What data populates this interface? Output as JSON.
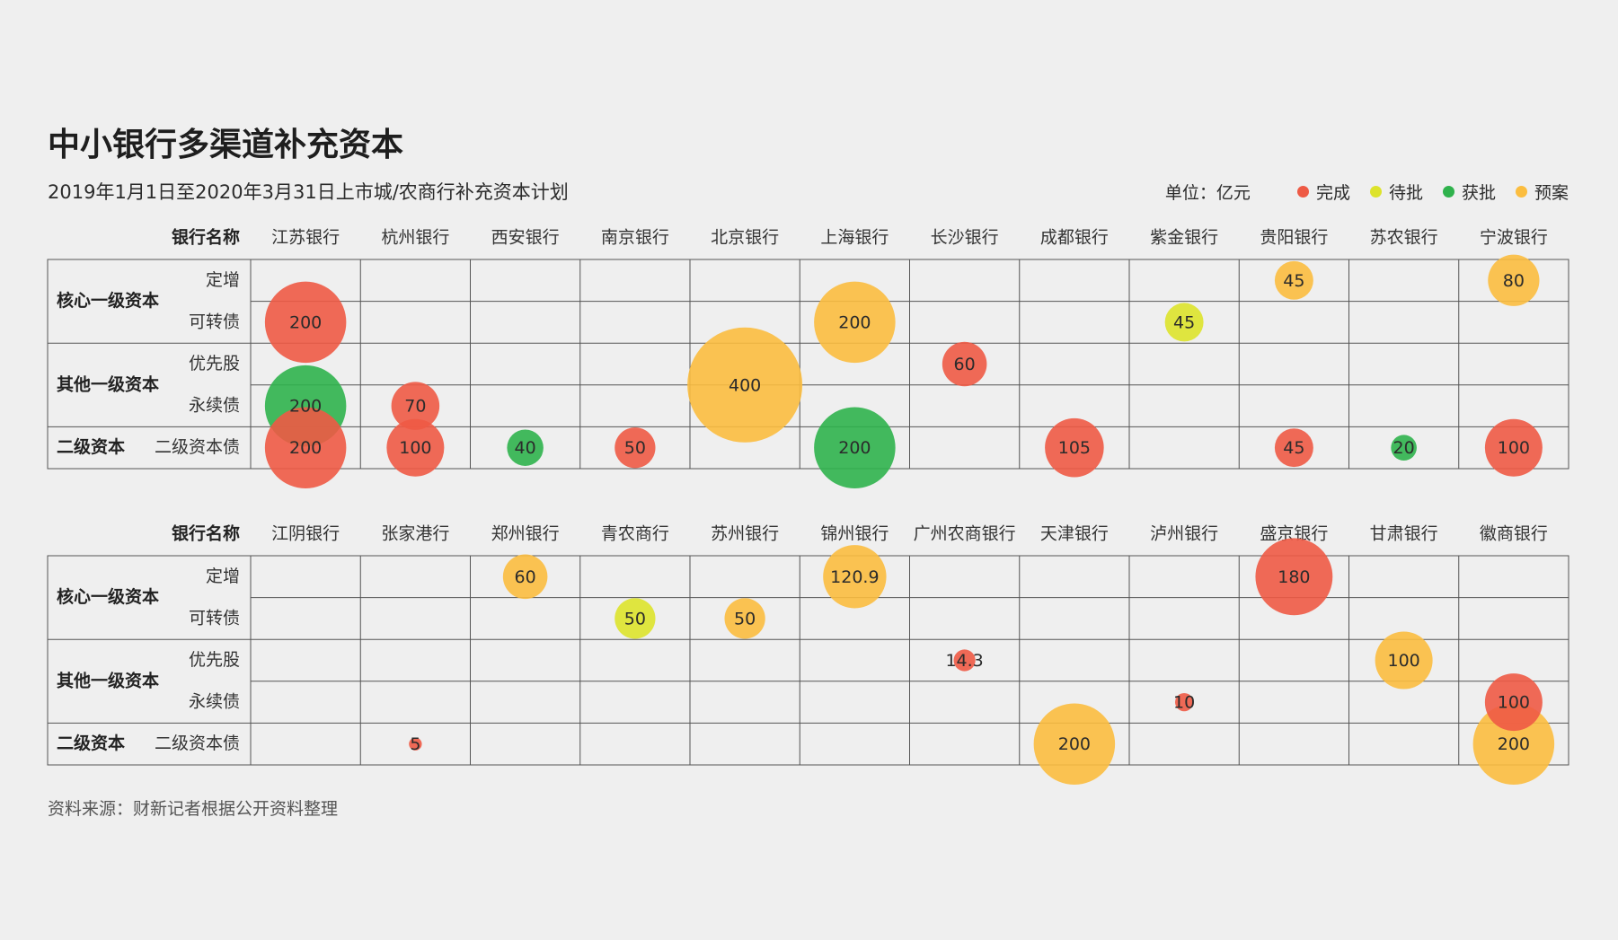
{
  "title": "中小银行多渠道补充资本",
  "subtitle": "2019年1月1日至2020年3月31日上市城/农商行补充资本计划",
  "legend": {
    "unit": "单位：亿元",
    "items": [
      {
        "key": "done",
        "label": "完成",
        "color": "#ee5a45"
      },
      {
        "key": "pending",
        "label": "待批",
        "color": "#dde32b"
      },
      {
        "key": "approved",
        "label": "获批",
        "color": "#2fb24c"
      },
      {
        "key": "plan",
        "label": "预案",
        "color": "#fbbd3f"
      }
    ]
  },
  "source": "资料来源：财新记者根据公开资料整理",
  "chart_data": {
    "type": "bubble-grid",
    "header_label": "银行名称",
    "row_groups": [
      {
        "label": "核心一级资本",
        "rows": [
          "定增",
          "可转债"
        ]
      },
      {
        "label": "其他一级资本",
        "rows": [
          "优先股",
          "永续债"
        ]
      },
      {
        "label": "二级资本",
        "rows": [
          "二级资本债"
        ]
      }
    ],
    "panels": [
      {
        "banks": [
          "江苏银行",
          "杭州银行",
          "西安银行",
          "南京银行",
          "北京银行",
          "上海银行",
          "长沙银行",
          "成都银行",
          "紫金银行",
          "贵阳银行",
          "苏农银行",
          "宁波银行"
        ],
        "bubbles": [
          {
            "bank": 0,
            "row": 1,
            "value": 200,
            "status": "done"
          },
          {
            "bank": 0,
            "row": 3,
            "value": 200,
            "status": "approved"
          },
          {
            "bank": 0,
            "row": 4,
            "value": 200,
            "status": "done"
          },
          {
            "bank": 1,
            "row": 3,
            "value": 70,
            "status": "done"
          },
          {
            "bank": 1,
            "row": 4,
            "value": 100,
            "status": "done"
          },
          {
            "bank": 2,
            "row": 4,
            "value": 40,
            "status": "approved"
          },
          {
            "bank": 3,
            "row": 4,
            "value": 50,
            "status": "done"
          },
          {
            "bank": 4,
            "row": 2.5,
            "value": 400,
            "status": "plan"
          },
          {
            "bank": 5,
            "row": 1,
            "value": 200,
            "status": "plan"
          },
          {
            "bank": 5,
            "row": 4,
            "value": 200,
            "status": "approved"
          },
          {
            "bank": 6,
            "row": 2,
            "value": 60,
            "status": "done"
          },
          {
            "bank": 7,
            "row": 4,
            "value": 105,
            "status": "done"
          },
          {
            "bank": 8,
            "row": 1,
            "value": 45,
            "status": "pending"
          },
          {
            "bank": 9,
            "row": 0,
            "value": 45,
            "status": "plan"
          },
          {
            "bank": 9,
            "row": 4,
            "value": 45,
            "status": "done"
          },
          {
            "bank": 10,
            "row": 4,
            "value": 20,
            "status": "approved"
          },
          {
            "bank": 11,
            "row": 0,
            "value": 80,
            "status": "plan"
          },
          {
            "bank": 11,
            "row": 4,
            "value": 100,
            "status": "done"
          }
        ]
      },
      {
        "banks": [
          "江阴银行",
          "张家港行",
          "郑州银行",
          "青农商行",
          "苏州银行",
          "锦州银行",
          "广州农商银行",
          "天津银行",
          "泸州银行",
          "盛京银行",
          "甘肃银行",
          "徽商银行"
        ],
        "bubbles": [
          {
            "bank": 1,
            "row": 4,
            "value": 5,
            "status": "done"
          },
          {
            "bank": 2,
            "row": 0,
            "value": 60,
            "status": "plan"
          },
          {
            "bank": 3,
            "row": 1,
            "value": 50,
            "status": "pending"
          },
          {
            "bank": 4,
            "row": 1,
            "value": 50,
            "status": "plan"
          },
          {
            "bank": 5,
            "row": 0,
            "value": 120.9,
            "status": "plan"
          },
          {
            "bank": 6,
            "row": 2,
            "value": 14.3,
            "status": "done"
          },
          {
            "bank": 7,
            "row": 4,
            "value": 200,
            "status": "plan"
          },
          {
            "bank": 8,
            "row": 3,
            "value": 10,
            "status": "done"
          },
          {
            "bank": 9,
            "row": 0,
            "value": 180,
            "status": "done"
          },
          {
            "bank": 10,
            "row": 2,
            "value": 100,
            "status": "plan"
          },
          {
            "bank": 11,
            "row": 4,
            "value": 200,
            "status": "plan"
          },
          {
            "bank": 11,
            "row": 3,
            "value": 100,
            "status": "done"
          }
        ]
      }
    ]
  }
}
